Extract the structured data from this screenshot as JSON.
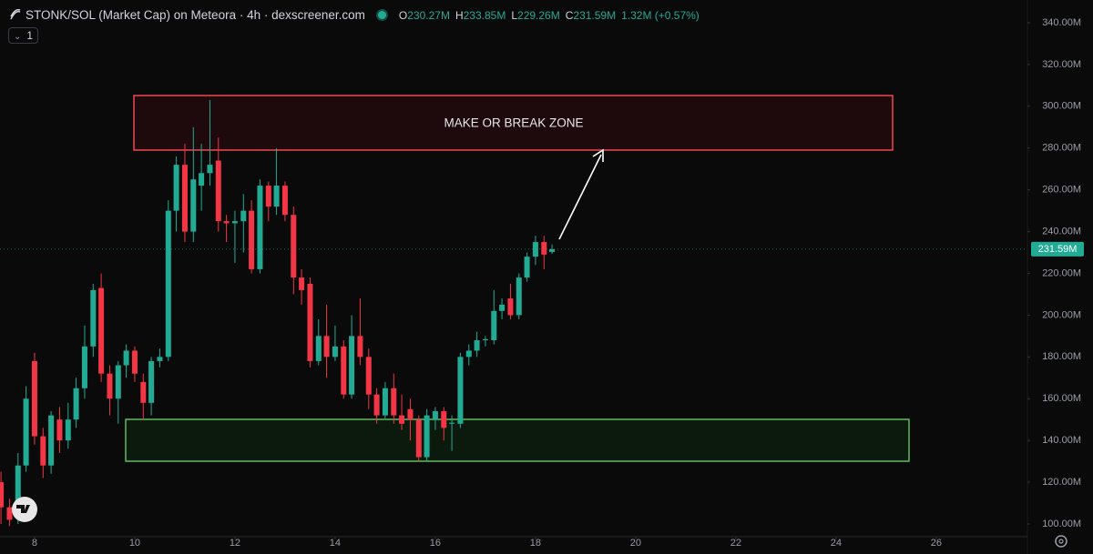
{
  "chart_data": {
    "type": "candlestick",
    "title": "STONK/SOL (Market Cap) on Meteora · 4h · dexscreener.com",
    "interval": "1",
    "ohlc_labels": [
      {
        "key": "O",
        "value": "230.27M"
      },
      {
        "key": "H",
        "value": "233.85M"
      },
      {
        "key": "L",
        "value": "229.26M"
      },
      {
        "key": "C",
        "value": "231.59M"
      }
    ],
    "change": "1.32M (+0.57%)",
    "zone_label": "MAKE OR BREAK ZONE",
    "up_color": "#22ab94",
    "down_color": "#f23645",
    "grid": false,
    "x": [
      7.33,
      7.5,
      7.67,
      7.83,
      8.0,
      8.17,
      8.33,
      8.5,
      8.67,
      8.83,
      9.0,
      9.17,
      9.33,
      9.5,
      9.67,
      9.83,
      10.0,
      10.17,
      10.33,
      10.5,
      10.67,
      10.83,
      11.0,
      11.17,
      11.33,
      11.5,
      11.67,
      11.83,
      12.0,
      12.17,
      12.33,
      12.5,
      12.67,
      12.83,
      13.0,
      13.17,
      13.33,
      13.5,
      13.67,
      13.83,
      14.0,
      14.17,
      14.33,
      14.5,
      14.67,
      14.83,
      15.0,
      15.17,
      15.33,
      15.5,
      15.67,
      15.83,
      16.0,
      16.17,
      16.33,
      16.5,
      16.67,
      16.83,
      17.0,
      17.17,
      17.33,
      17.5,
      17.67,
      17.83,
      18.0,
      18.17,
      18.33
    ],
    "open": [
      120,
      108,
      103,
      128,
      178,
      142,
      128,
      150,
      140,
      150,
      165,
      185,
      213,
      172,
      160,
      176,
      183,
      168,
      158,
      178,
      180,
      250,
      272,
      240,
      262,
      268,
      274,
      245,
      244,
      245,
      250,
      222,
      262,
      252,
      262,
      248,
      218,
      215,
      178,
      190,
      180,
      185,
      162,
      190,
      180,
      162,
      152,
      165,
      152,
      155,
      150,
      132,
      150,
      154,
      148,
      148,
      180,
      183,
      188,
      188,
      202,
      208,
      200,
      218,
      228,
      235,
      230.27
    ],
    "high": [
      125,
      112,
      134,
      166,
      182,
      146,
      154,
      156,
      158,
      170,
      195,
      215,
      220,
      176,
      178,
      186,
      185,
      172,
      180,
      184,
      255,
      276,
      282,
      290,
      282,
      303,
      285,
      248,
      250,
      258,
      255,
      265,
      264,
      280,
      264,
      252,
      222,
      218,
      198,
      205,
      195,
      188,
      200,
      208,
      184,
      165,
      168,
      172,
      162,
      160,
      152,
      155,
      156,
      156,
      152,
      182,
      186,
      192,
      190,
      212,
      208,
      215,
      220,
      230,
      238,
      238,
      233.85
    ],
    "low": [
      100,
      99,
      100,
      125,
      138,
      122,
      124,
      134,
      136,
      146,
      160,
      180,
      168,
      152,
      148,
      170,
      168,
      150,
      152,
      175,
      178,
      240,
      235,
      235,
      250,
      262,
      240,
      235,
      225,
      230,
      220,
      220,
      245,
      248,
      245,
      210,
      205,
      175,
      176,
      170,
      178,
      160,
      160,
      176,
      155,
      148,
      150,
      148,
      145,
      140,
      130,
      130,
      145,
      140,
      135,
      146,
      176,
      180,
      185,
      186,
      198,
      198,
      198,
      216,
      224,
      222,
      229.26
    ],
    "close": [
      108,
      102,
      128,
      160,
      142,
      128,
      152,
      140,
      150,
      165,
      185,
      212,
      172,
      160,
      176,
      183,
      172,
      158,
      178,
      180,
      250,
      272,
      240,
      265,
      268,
      272,
      245,
      244,
      245,
      250,
      222,
      262,
      252,
      262,
      248,
      218,
      212,
      178,
      190,
      180,
      185,
      162,
      190,
      180,
      162,
      152,
      165,
      152,
      148,
      150,
      132,
      152,
      154,
      146,
      148.5,
      180,
      183,
      188,
      188.5,
      202,
      205,
      200,
      218,
      228,
      235,
      229,
      231.59
    ],
    "xlim": [
      7.31,
      27.82
    ],
    "xticks": [
      8,
      10,
      12,
      14,
      16,
      18,
      20,
      22,
      24,
      26
    ],
    "ylim": [
      93.9,
      350.89
    ],
    "yticks": [
      {
        "value": 100,
        "label": "100.00M"
      },
      {
        "value": 120,
        "label": "120.00M"
      },
      {
        "value": 140,
        "label": "140.00M"
      },
      {
        "value": 160,
        "label": "160.00M"
      },
      {
        "value": 180,
        "label": "180.00M"
      },
      {
        "value": 200,
        "label": "200.00M"
      },
      {
        "value": 220,
        "label": "220.00M"
      },
      {
        "value": 240,
        "label": "240.00M"
      },
      {
        "value": 260,
        "label": "260.00M"
      },
      {
        "value": 280,
        "label": "280.00M"
      },
      {
        "value": 300,
        "label": "300.00M"
      },
      {
        "value": 320,
        "label": "320.00M"
      },
      {
        "value": 340,
        "label": "340.00M"
      }
    ]
  }
}
